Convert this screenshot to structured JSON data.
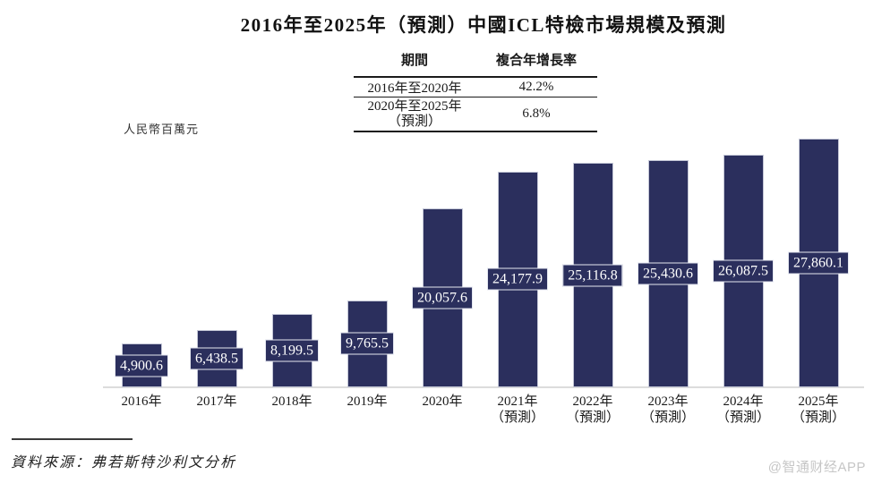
{
  "title": "2016年至2025年（預測）中國ICL特檢市場規模及預測",
  "cagr_table": {
    "headers": [
      "期間",
      "複合年增長率"
    ],
    "rows": [
      {
        "period": "2016年至2020年",
        "period_line2": "",
        "cagr": "42.2%"
      },
      {
        "period": "2020年至2025年",
        "period_line2": "（預測）",
        "cagr": "6.8%"
      }
    ]
  },
  "chart_data": {
    "type": "bar",
    "title": "2016年至2025年（預測）中國ICL特檢市場規模及預測",
    "ylabel": "人民幣百萬元",
    "xlabel": "",
    "ylim": [
      0,
      28000
    ],
    "grid": false,
    "legend": "none",
    "categories": [
      {
        "year": "2016年",
        "note": ""
      },
      {
        "year": "2017年",
        "note": ""
      },
      {
        "year": "2018年",
        "note": ""
      },
      {
        "year": "2019年",
        "note": ""
      },
      {
        "year": "2020年",
        "note": ""
      },
      {
        "year": "2021年",
        "note": "（預測）"
      },
      {
        "year": "2022年",
        "note": "（預測）"
      },
      {
        "year": "2023年",
        "note": "（預測）"
      },
      {
        "year": "2024年",
        "note": "（預測）"
      },
      {
        "year": "2025年",
        "note": "（預測）"
      }
    ],
    "values": [
      4900.6,
      6438.5,
      8199.5,
      9765.5,
      20057.6,
      24177.9,
      25116.8,
      25430.6,
      26087.5,
      27860.1
    ],
    "value_labels": [
      "4,900.6",
      "6,438.5",
      "8,199.5",
      "9,765.5",
      "20,057.6",
      "24,177.9",
      "25,116.8",
      "25,430.6",
      "26,087.5",
      "27,860.1"
    ],
    "bar_color": "#2b2f5d",
    "value_label_text_color": "#ffffff"
  },
  "source": {
    "label": "資料來源：弗若斯特沙利文分析"
  },
  "watermark": "@智通财经APP",
  "colors": {
    "bar": "#2b2f5d",
    "baseline": "#dcdcdc",
    "table_rule": "#1a1a1a",
    "watermark": "#c6c6c6"
  }
}
